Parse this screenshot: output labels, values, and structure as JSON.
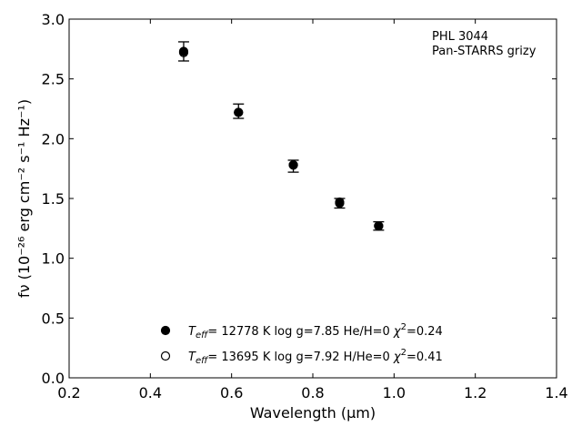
{
  "chart_data": {
    "type": "scatter",
    "xlabel": "Wavelength (μm)",
    "ylabel": "fν (10⁻²⁶ erg cm⁻² s⁻¹ Hz⁻¹)",
    "xlim": [
      0.2,
      1.4
    ],
    "ylim": [
      0.0,
      3.0
    ],
    "xticks": [
      "0.2",
      "0.4",
      "0.6",
      "0.8",
      "1.0",
      "1.2",
      "1.4"
    ],
    "yticks": [
      "0.0",
      "0.5",
      "1.0",
      "1.5",
      "2.0",
      "2.5",
      "3.0"
    ],
    "grid": false,
    "annotations": [
      "PHL 3044",
      "Pan-STARRS grizy"
    ],
    "observed": {
      "x": [
        0.482,
        0.617,
        0.752,
        0.866,
        0.962
      ],
      "y": [
        2.73,
        2.23,
        1.77,
        1.46,
        1.27
      ],
      "err": [
        0.08,
        0.06,
        0.05,
        0.04,
        0.035
      ]
    },
    "series": [
      {
        "marker": "filled",
        "color": "#000000",
        "x": [
          0.482,
          0.617,
          0.752,
          0.866,
          0.962
        ],
        "y": [
          2.73,
          2.22,
          1.78,
          1.46,
          1.27
        ]
      },
      {
        "marker": "open",
        "color": "#000000",
        "x": [
          0.482,
          0.617,
          0.752,
          0.866,
          0.962
        ],
        "y": [
          2.72,
          2.22,
          1.78,
          1.47,
          1.27
        ]
      }
    ],
    "legend": {
      "placement": "lower-center",
      "entries": [
        {
          "teff_label": "T",
          "teff_sub": "eff",
          "text": "= 12778 K  log g=7.85  He/H=0  ",
          "chi_label": "χ",
          "chi_sup": "2",
          "chi_value": "=0.24"
        },
        {
          "teff_label": "T",
          "teff_sub": "eff",
          "text": "= 13695 K  log g=7.92  H/He=0  ",
          "chi_label": "χ",
          "chi_sup": "2",
          "chi_value": "=0.41"
        }
      ]
    }
  }
}
